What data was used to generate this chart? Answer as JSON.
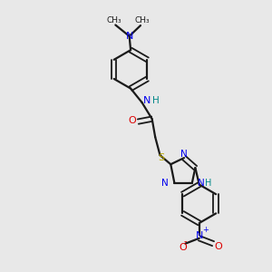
{
  "bg_color": "#e8e8e8",
  "bond_color": "#1a1a1a",
  "N_color": "#0000ee",
  "O_color": "#dd0000",
  "S_color": "#bbaa00",
  "NH_color": "#008888",
  "figsize": [
    3.0,
    3.0
  ],
  "dpi": 100,
  "xlim": [
    0,
    10
  ],
  "ylim": [
    0,
    10
  ]
}
